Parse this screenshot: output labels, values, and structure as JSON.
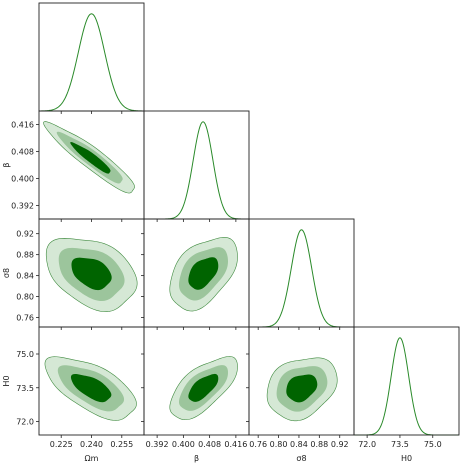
{
  "chart_data": {
    "type": "corner-plot",
    "parameters": [
      {
        "name": "omega_m",
        "label": "Ωm",
        "mean": 0.24,
        "sigma": 0.0065,
        "range": [
          0.214,
          0.266
        ],
        "ticks": [
          0.225,
          0.24,
          0.255
        ],
        "tick_labels": [
          "0.225",
          "0.240",
          "0.255"
        ]
      },
      {
        "name": "beta",
        "label": "β",
        "mean": 0.406,
        "sigma": 0.003,
        "range": [
          0.388,
          0.42
        ],
        "ticks": [
          0.392,
          0.4,
          0.408,
          0.416
        ],
        "tick_labels": [
          "0.392",
          "0.400",
          "0.408",
          "0.416"
        ]
      },
      {
        "name": "sigma_8",
        "label": "σ8",
        "mean": 0.845,
        "sigma": 0.02,
        "range": [
          0.742,
          0.948
        ],
        "ticks": [
          0.76,
          0.8,
          0.84,
          0.88,
          0.92
        ],
        "tick_labels": [
          "0.76",
          "0.80",
          "0.84",
          "0.88",
          "0.92"
        ]
      },
      {
        "name": "H0",
        "label": "H0",
        "mean": 73.5,
        "sigma": 0.4,
        "range": [
          71.4,
          76.2
        ],
        "ticks": [
          72.0,
          73.5,
          75.0
        ],
        "tick_labels": [
          "72.0",
          "73.5",
          "75.0"
        ]
      }
    ],
    "correlations": [
      {
        "pair": [
          "omega_m",
          "beta"
        ],
        "rho": -0.93
      },
      {
        "pair": [
          "omega_m",
          "sigma_8"
        ],
        "rho": -0.35
      },
      {
        "pair": [
          "omega_m",
          "H0"
        ],
        "rho": -0.62
      },
      {
        "pair": [
          "beta",
          "sigma_8"
        ],
        "rho": 0.45
      },
      {
        "pair": [
          "beta",
          "H0"
        ],
        "rho": 0.65
      },
      {
        "pair": [
          "sigma_8",
          "H0"
        ],
        "rho": 0.25
      }
    ],
    "contour_levels": [
      "1-sigma",
      "2-sigma",
      "3-sigma"
    ],
    "colors": {
      "line": "#2a8a2a",
      "contour_1sigma": "#006400",
      "contour_2sigma": "#9cc59c",
      "contour_3sigma": "#d5e8d5"
    },
    "grid": false
  }
}
